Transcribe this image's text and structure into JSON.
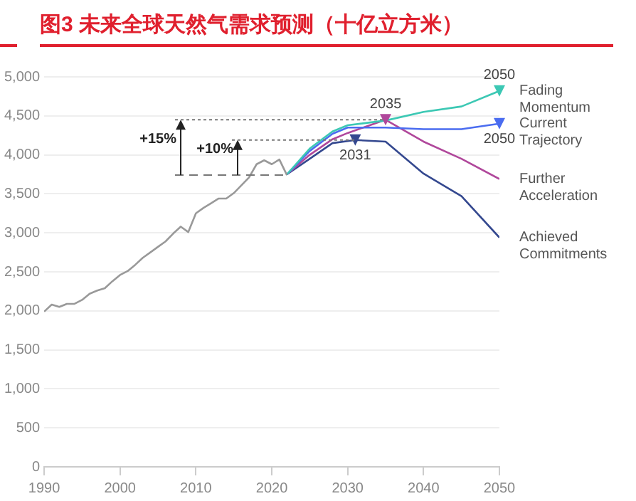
{
  "chart_data": {
    "type": "line",
    "title": "图3  未来全球天然气需求预测（十亿立方米）",
    "xlim": [
      1990,
      2050
    ],
    "xticks": [
      1990,
      2000,
      2010,
      2020,
      2030,
      2040,
      2050
    ],
    "ylim": [
      0,
      5000
    ],
    "yticks": [
      0,
      {
        "value": 500,
        "label": "500"
      },
      {
        "value": 1000,
        "label": "1,000"
      },
      {
        "value": 1500,
        "label": "1,500"
      },
      {
        "value": 2000,
        "label": "2,000"
      },
      {
        "value": 2500,
        "label": "2,500"
      },
      {
        "value": 3000,
        "label": "3,000"
      },
      {
        "value": 3500,
        "label": "3,500"
      },
      {
        "value": 4000,
        "label": "4,000"
      },
      {
        "value": 4500,
        "label": "4,500"
      },
      {
        "value": 5000,
        "label": "5,000"
      }
    ],
    "ref_lines": [
      {
        "axis": "y",
        "value": 3740,
        "color": "#777777",
        "line_style": "dashed"
      }
    ],
    "grid": "y",
    "marker": "none",
    "line_style": "solid",
    "legend": "right",
    "series": [
      {
        "color": "#999999",
        "x": [
          1990,
          1991,
          1992,
          1993,
          1994,
          1995,
          1996,
          1997,
          1998,
          1999,
          2000,
          2001,
          2002,
          2003,
          2004,
          2005,
          2006,
          2007,
          2008,
          2009,
          2010,
          2011,
          2012,
          2013,
          2014,
          2015,
          2016,
          2017,
          2018,
          2019,
          2020,
          2021,
          2022
        ],
        "values": [
          1990,
          2080,
          2050,
          2090,
          2090,
          2140,
          2220,
          2260,
          2290,
          2380,
          2460,
          2510,
          2590,
          2680,
          2750,
          2820,
          2890,
          2990,
          3080,
          3010,
          3250,
          3320,
          3380,
          3440,
          3440,
          3510,
          3610,
          3710,
          3880,
          3930,
          3880,
          3940,
          3740
        ]
      },
      {
        "name": "Fading Momentum",
        "color": "#3cc8b4",
        "x": [
          2022,
          2025,
          2028,
          2030,
          2035,
          2040,
          2045,
          2050
        ],
        "values": [
          3750,
          4080,
          4300,
          4380,
          4440,
          4550,
          4620,
          4820
        ]
      },
      {
        "name": "Current Trajectory",
        "color": "#4a6cf0",
        "x": [
          2022,
          2025,
          2028,
          2030,
          2035,
          2040,
          2045,
          2050
        ],
        "values": [
          3750,
          4050,
          4270,
          4350,
          4350,
          4330,
          4330,
          4400
        ]
      },
      {
        "name": "Further Acceleration",
        "color": "#b0479b",
        "x": [
          2022,
          2025,
          2028,
          2030,
          2035,
          2040,
          2045,
          2050
        ],
        "values": [
          3750,
          4000,
          4200,
          4280,
          4450,
          4170,
          3950,
          3690
        ]
      },
      {
        "name": "Achieved Commitments",
        "color": "#34488f",
        "x": [
          2022,
          2025,
          2028,
          2031,
          2035,
          2040,
          2045,
          2050
        ],
        "values": [
          3750,
          3950,
          4150,
          4190,
          4170,
          3760,
          3470,
          2940
        ]
      }
    ],
    "annotations": [
      {
        "text": "2050",
        "x": 2050,
        "y": 4820
      },
      {
        "text": "2035",
        "x": 2035,
        "y": 4450
      },
      {
        "text": "2031",
        "x": 2031,
        "y": 4190
      },
      {
        "text": "2050",
        "x": 2050,
        "y": 4400
      },
      {
        "text": "+15%",
        "x": 2035,
        "y": 4450
      },
      {
        "text": "+10%",
        "x": 2031,
        "y": 4190
      }
    ]
  }
}
